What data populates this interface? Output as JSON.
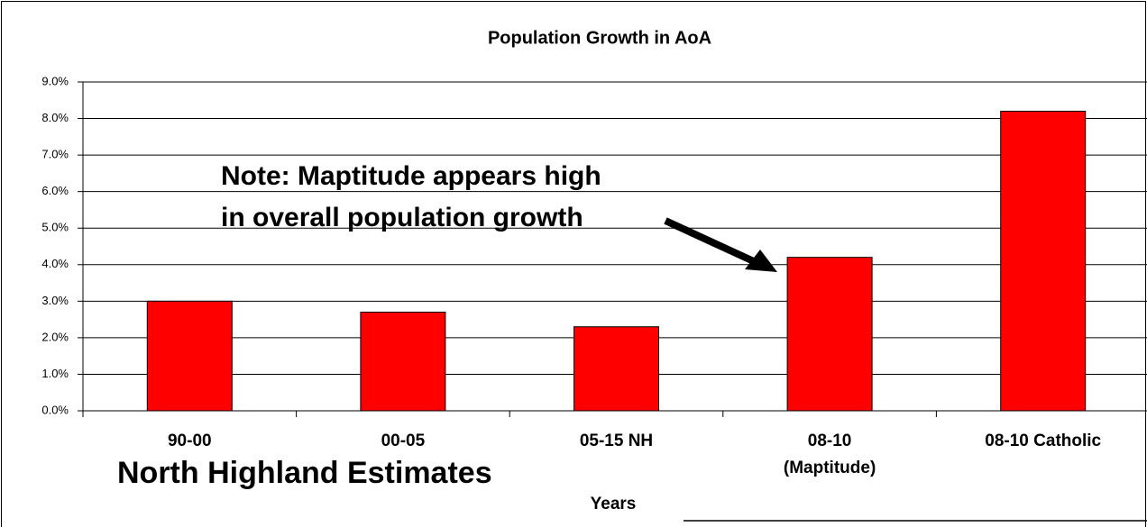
{
  "chart_data": {
    "type": "bar",
    "title": "Population Growth in AoA",
    "categories": [
      "90-00",
      "00-05",
      "05-15 NH",
      "08-10\n(Maptitude)",
      "08-10 Catholic"
    ],
    "values": [
      3.0,
      2.7,
      2.3,
      4.2,
      8.2
    ],
    "color": "#ff0000",
    "ylim": [
      0,
      9
    ],
    "yticks": [
      {
        "value": 0,
        "label": "0.0%"
      },
      {
        "value": 1,
        "label": "1.0%"
      },
      {
        "value": 2,
        "label": "2.0%"
      },
      {
        "value": 3,
        "label": "3.0%"
      },
      {
        "value": 4,
        "label": "4.0%"
      },
      {
        "value": 5,
        "label": "5.0%"
      },
      {
        "value": 6,
        "label": "6.0%"
      },
      {
        "value": 7,
        "label": "7.0%"
      },
      {
        "value": 8,
        "label": "8.0%"
      },
      {
        "value": 9,
        "label": "9.0%"
      }
    ],
    "grid": true,
    "annotation": [
      "Note: Maptitude appears high",
      "in overall population growth"
    ],
    "subtitle": "North Highland Estimates",
    "x_label": "Years"
  }
}
